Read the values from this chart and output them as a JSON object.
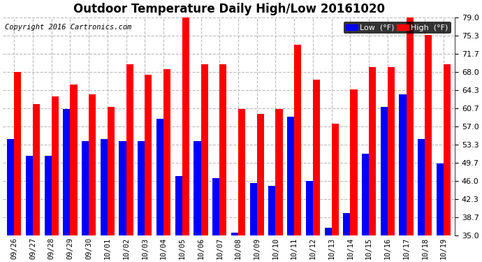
{
  "title": "Outdoor Temperature Daily High/Low 20161020",
  "copyright": "Copyright 2016 Cartronics.com",
  "categories": [
    "09/26",
    "09/27",
    "09/28",
    "09/29",
    "09/30",
    "10/01",
    "10/02",
    "10/03",
    "10/04",
    "10/05",
    "10/06",
    "10/07",
    "10/08",
    "10/09",
    "10/10",
    "10/11",
    "10/12",
    "10/13",
    "10/14",
    "10/15",
    "10/16",
    "10/17",
    "10/18",
    "10/19"
  ],
  "high": [
    68.0,
    61.5,
    63.0,
    65.5,
    63.5,
    61.0,
    69.5,
    67.5,
    68.5,
    79.0,
    69.5,
    69.5,
    60.5,
    59.5,
    60.5,
    73.5,
    66.5,
    57.5,
    64.5,
    69.0,
    69.0,
    79.5,
    75.5,
    69.5
  ],
  "low": [
    54.5,
    51.0,
    51.0,
    60.5,
    54.0,
    54.5,
    54.0,
    54.0,
    58.5,
    47.0,
    54.0,
    46.5,
    35.5,
    45.5,
    45.0,
    59.0,
    46.0,
    36.5,
    39.5,
    51.5,
    61.0,
    63.5,
    54.5,
    49.5
  ],
  "high_color": "#ff0000",
  "low_color": "#0000ff",
  "bg_color": "#ffffff",
  "plot_bg_color": "#ffffff",
  "grid_color": "#bbbbbb",
  "ylim_min": 35.0,
  "ylim_max": 79.0,
  "yticks": [
    35.0,
    38.7,
    42.3,
    46.0,
    49.7,
    53.3,
    57.0,
    60.7,
    64.3,
    68.0,
    71.7,
    75.3,
    79.0
  ],
  "title_fontsize": 12,
  "copyright_fontsize": 7.5,
  "bar_width": 0.38
}
